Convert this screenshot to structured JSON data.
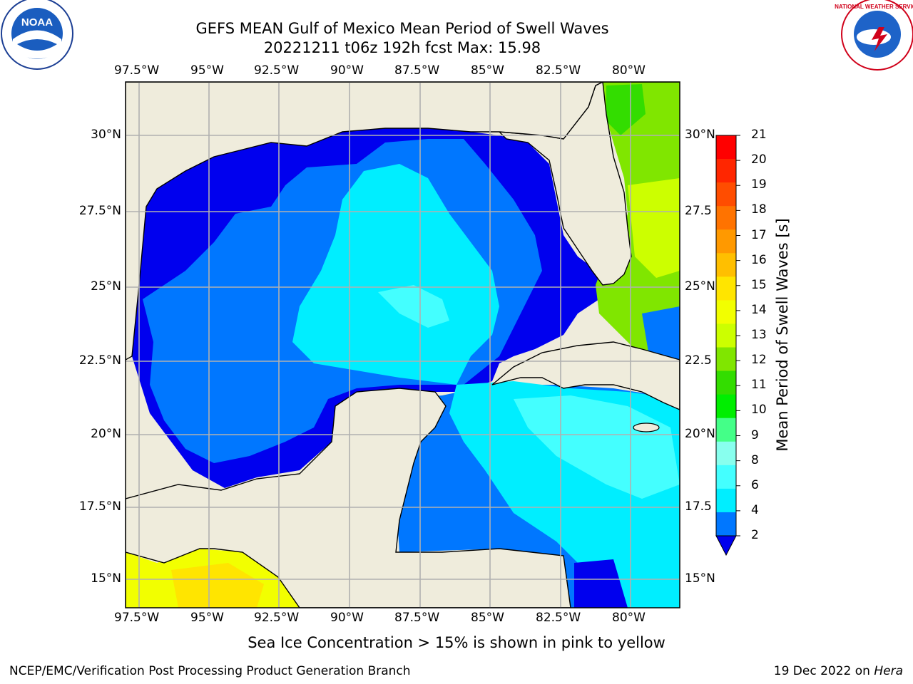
{
  "title": {
    "line1": "GEFS MEAN Gulf of Mexico Mean Period of Swell Waves",
    "line2": "20221211 t06z 192h fcst   Max: 15.98"
  },
  "logos": {
    "left": {
      "name": "noaa-logo",
      "text": "NOAA"
    },
    "right": {
      "name": "nws-logo",
      "text": "NATIONAL WEATHER SERVICE"
    }
  },
  "map": {
    "lon_labels": [
      "97.5°W",
      "95°W",
      "92.5°W",
      "90°W",
      "87.5°W",
      "85°W",
      "82.5°W",
      "80°W"
    ],
    "lat_labels_left": [
      "30°N",
      "27.5°N",
      "25°N",
      "22.5°N",
      "20°N",
      "17.5°N",
      "15°N"
    ],
    "lat_labels_right": [
      "30°N",
      "27.5",
      "25°N",
      "22.5",
      "20°N",
      "17.5",
      "15°N"
    ],
    "colors": {
      "land": "#efecdc",
      "grid": "#b0b0b0",
      "coast": "#000000"
    }
  },
  "colorbar": {
    "label": "Mean Period of Swell Waves [s]",
    "ticks": [
      "21",
      "20",
      "19",
      "18",
      "17",
      "16",
      "15",
      "14",
      "13",
      "12",
      "11",
      "10",
      "9",
      "8",
      "6",
      "4",
      "2"
    ],
    "colors": [
      "#ff0000",
      "#ff2600",
      "#ff4d00",
      "#ff7300",
      "#ff9900",
      "#ffbf00",
      "#ffe500",
      "#f2ff00",
      "#ccff00",
      "#80e600",
      "#33dd00",
      "#00ee00",
      "#44ff88",
      "#88ffee",
      "#44ffff",
      "#00eeff",
      "#0077ff"
    ],
    "extend_color": "#0000ee"
  },
  "footnote": "Sea Ice Concentration > 15% is shown in pink to yellow",
  "credit": "NCEP/EMC/Verification Post Processing Product Generation Branch",
  "date_stamp": {
    "date": "19 Dec 2022 on",
    "machine": "Hera"
  }
}
